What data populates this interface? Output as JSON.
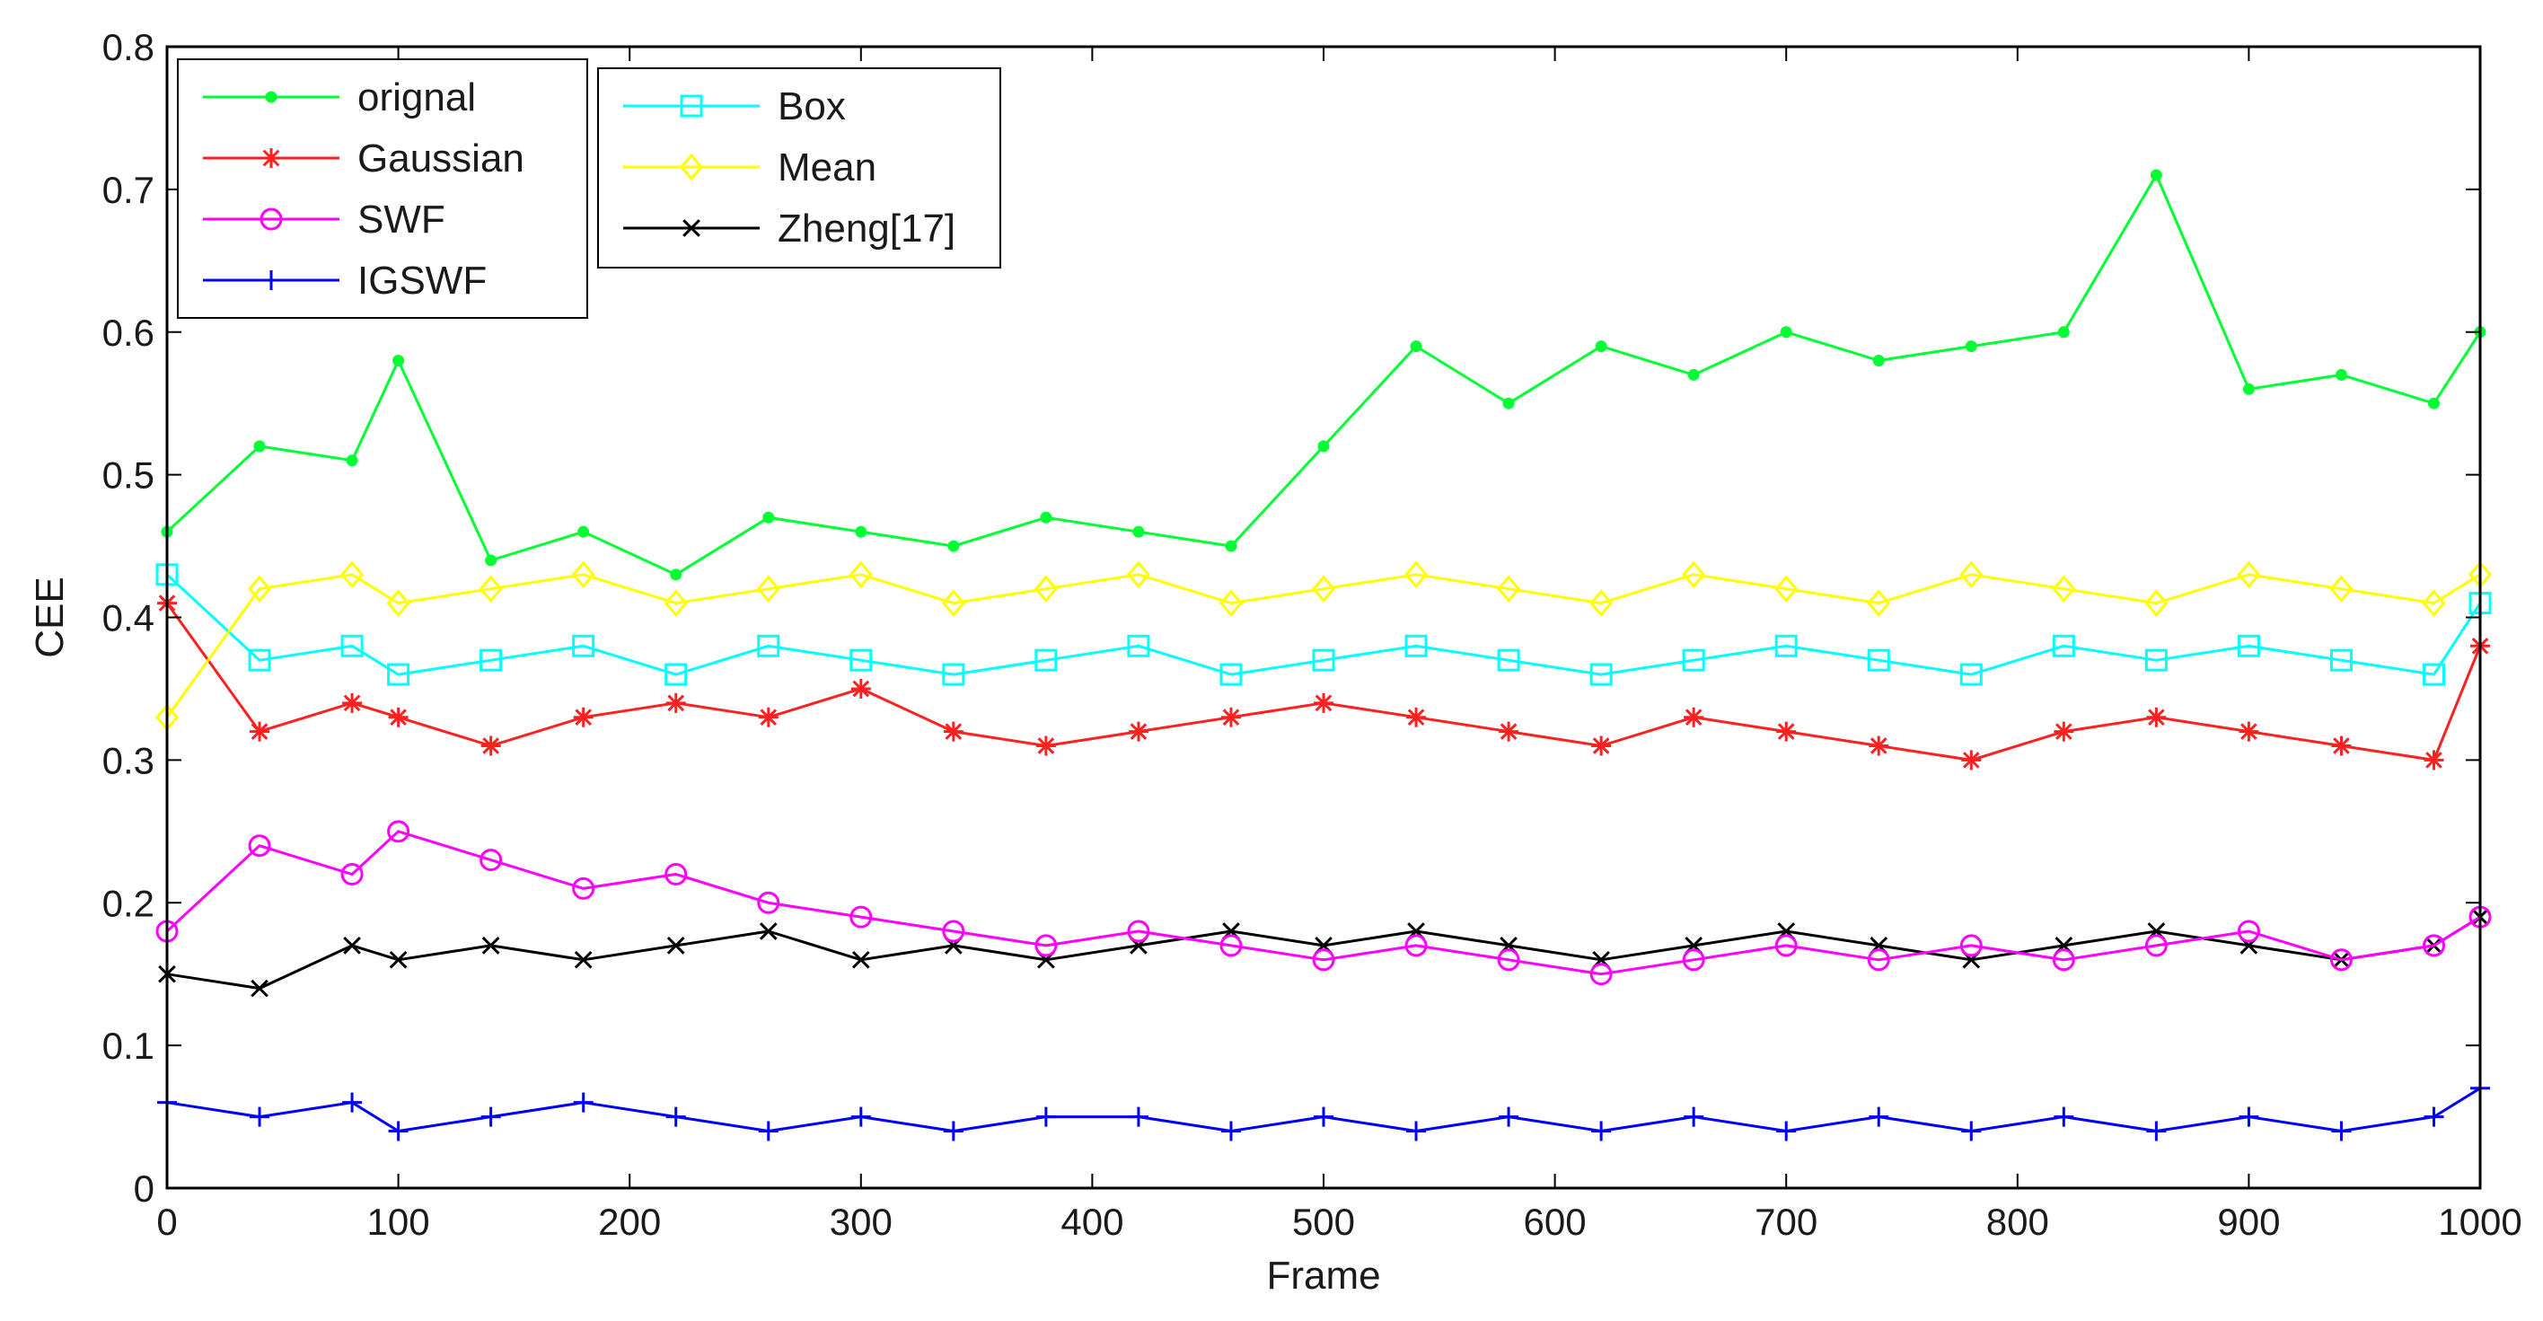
{
  "chart_data": {
    "type": "line",
    "title": "",
    "xlabel": "Frame",
    "ylabel": "CEE",
    "xlim": [
      0,
      1000
    ],
    "ylim": [
      0,
      0.8
    ],
    "xticks": [
      0,
      100,
      200,
      300,
      400,
      500,
      600,
      700,
      800,
      900,
      1000
    ],
    "yticks": [
      0,
      0.1,
      0.2,
      0.3,
      0.4,
      0.5,
      0.6,
      0.7,
      0.8
    ],
    "ytick_labels": [
      "0",
      "0.1",
      "0.2",
      "0.3",
      "0.4",
      "0.5",
      "0.6",
      "0.7",
      "0.8"
    ],
    "grid": false,
    "legend_position": "top-left",
    "x": [
      0,
      40,
      80,
      100,
      140,
      180,
      220,
      260,
      300,
      340,
      380,
      420,
      460,
      500,
      540,
      580,
      620,
      660,
      700,
      740,
      780,
      820,
      860,
      900,
      940,
      980,
      1000
    ],
    "series": [
      {
        "name": "orignal",
        "color": "#00ff33",
        "marker": "dot",
        "legend_col": 0,
        "values": [
          0.46,
          0.52,
          0.51,
          0.58,
          0.44,
          0.46,
          0.43,
          0.47,
          0.46,
          0.45,
          0.47,
          0.46,
          0.45,
          0.52,
          0.59,
          0.55,
          0.59,
          0.57,
          0.6,
          0.58,
          0.59,
          0.6,
          0.71,
          0.56,
          0.57,
          0.55,
          0.6
        ]
      },
      {
        "name": "Gaussian",
        "color": "#ff2020",
        "marker": "star",
        "legend_col": 0,
        "values": [
          0.41,
          0.32,
          0.34,
          0.33,
          0.31,
          0.33,
          0.34,
          0.33,
          0.35,
          0.32,
          0.31,
          0.32,
          0.33,
          0.34,
          0.33,
          0.32,
          0.31,
          0.33,
          0.32,
          0.31,
          0.3,
          0.32,
          0.33,
          0.32,
          0.31,
          0.3,
          0.38
        ]
      },
      {
        "name": "SWF",
        "color": "#ff00ff",
        "marker": "circle",
        "legend_col": 0,
        "values": [
          0.18,
          0.24,
          0.22,
          0.25,
          0.23,
          0.21,
          0.22,
          0.2,
          0.19,
          0.18,
          0.17,
          0.18,
          0.17,
          0.16,
          0.17,
          0.16,
          0.15,
          0.16,
          0.17,
          0.16,
          0.17,
          0.16,
          0.17,
          0.18,
          0.16,
          0.17,
          0.19
        ]
      },
      {
        "name": "IGSWF",
        "color": "#0000ff",
        "marker": "plus",
        "legend_col": 0,
        "values": [
          0.06,
          0.05,
          0.06,
          0.04,
          0.05,
          0.06,
          0.05,
          0.04,
          0.05,
          0.04,
          0.05,
          0.05,
          0.04,
          0.05,
          0.04,
          0.05,
          0.04,
          0.05,
          0.04,
          0.05,
          0.04,
          0.05,
          0.04,
          0.05,
          0.04,
          0.05,
          0.07
        ]
      },
      {
        "name": "Box",
        "color": "#00ffff",
        "marker": "square",
        "legend_col": 1,
        "values": [
          0.43,
          0.37,
          0.38,
          0.36,
          0.37,
          0.38,
          0.36,
          0.38,
          0.37,
          0.36,
          0.37,
          0.38,
          0.36,
          0.37,
          0.38,
          0.37,
          0.36,
          0.37,
          0.38,
          0.37,
          0.36,
          0.38,
          0.37,
          0.38,
          0.37,
          0.36,
          0.41
        ]
      },
      {
        "name": "Mean",
        "color": "#ffff00",
        "marker": "diamond",
        "legend_col": 1,
        "values": [
          0.33,
          0.42,
          0.43,
          0.41,
          0.42,
          0.43,
          0.41,
          0.42,
          0.43,
          0.41,
          0.42,
          0.43,
          0.41,
          0.42,
          0.43,
          0.42,
          0.41,
          0.43,
          0.42,
          0.41,
          0.43,
          0.42,
          0.41,
          0.43,
          0.42,
          0.41,
          0.43
        ]
      },
      {
        "name": "Zheng[17]",
        "color": "#000000",
        "marker": "x",
        "legend_col": 1,
        "values": [
          0.15,
          0.14,
          0.17,
          0.16,
          0.17,
          0.16,
          0.17,
          0.18,
          0.16,
          0.17,
          0.16,
          0.17,
          0.18,
          0.17,
          0.18,
          0.17,
          0.16,
          0.17,
          0.18,
          0.17,
          0.16,
          0.17,
          0.18,
          0.17,
          0.16,
          0.17,
          0.19
        ]
      }
    ]
  }
}
